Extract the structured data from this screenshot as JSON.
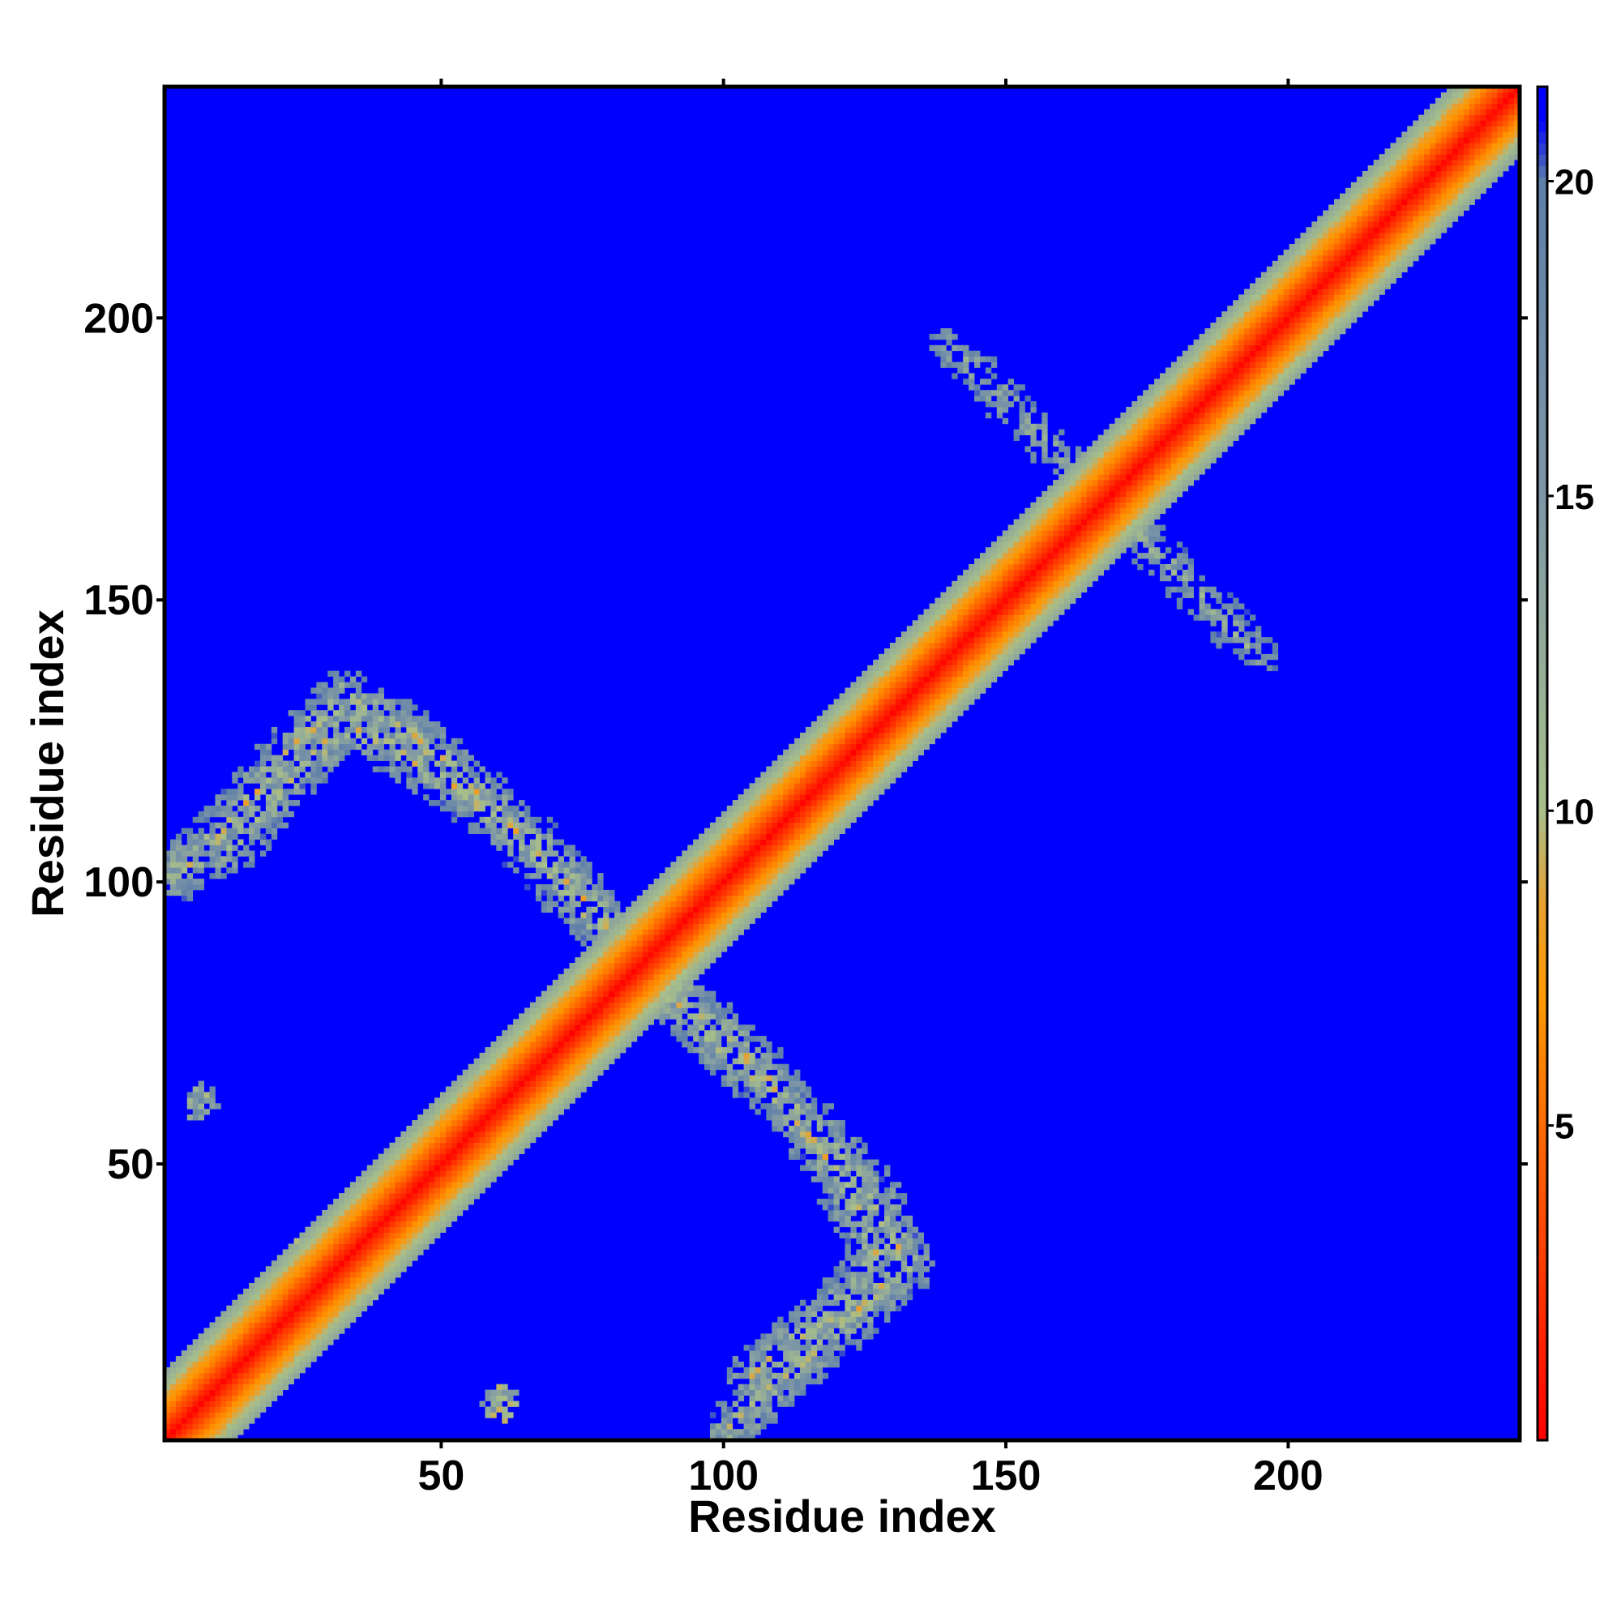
{
  "chart_data": {
    "type": "heatmap",
    "title": "",
    "xlabel": "Residue index",
    "ylabel": "Residue index",
    "xlim": [
      1,
      241
    ],
    "ylim": [
      1,
      241
    ],
    "x_ticks": [
      50,
      100,
      150,
      200
    ],
    "y_ticks": [
      50,
      100,
      150,
      200
    ],
    "n_residues": 241,
    "colorbar": {
      "range": [
        0,
        21.5
      ],
      "ticks": [
        5,
        10,
        15,
        20
      ],
      "colors": [
        {
          "value": 0,
          "color": "#ff0000"
        },
        {
          "value": 4,
          "color": "#ff5500"
        },
        {
          "value": 7,
          "color": "#ff9900"
        },
        {
          "value": 8.5,
          "color": "#e8a030"
        },
        {
          "value": 10,
          "color": "#a8bf8a"
        },
        {
          "value": 15,
          "color": "#7e97a6"
        },
        {
          "value": 20,
          "color": "#5e7fa8"
        },
        {
          "value": 21,
          "color": "#0000ff"
        }
      ],
      "background_color": "#0000ff"
    },
    "features": [
      {
        "name": "main diagonal",
        "from": [
          1,
          1
        ],
        "to": [
          241,
          241
        ],
        "half_width": 12
      },
      {
        "name": "anti-diagonal band",
        "points": [
          [
            12,
            105
          ],
          [
            22,
            118
          ],
          [
            33,
            128
          ],
          [
            48,
            120
          ],
          [
            66,
            107
          ],
          [
            83,
            88
          ],
          [
            98,
            72
          ],
          [
            115,
            57
          ],
          [
            126,
            45
          ],
          [
            133,
            32
          ],
          [
            120,
            20
          ],
          [
            108,
            10
          ],
          [
            101,
            2
          ]
        ],
        "half_width": 5
      },
      {
        "name": "cross at 165",
        "from": [
          143,
          193
        ],
        "to": [
          195,
          140
        ],
        "half_width": 4
      },
      {
        "name": "patch",
        "center": [
          30,
          30
        ],
        "radius": 9
      },
      {
        "name": "patch",
        "center": [
          7,
          60
        ],
        "radius": 3
      },
      {
        "name": "patch",
        "center": [
          61,
          7
        ],
        "radius": 3
      }
    ]
  }
}
